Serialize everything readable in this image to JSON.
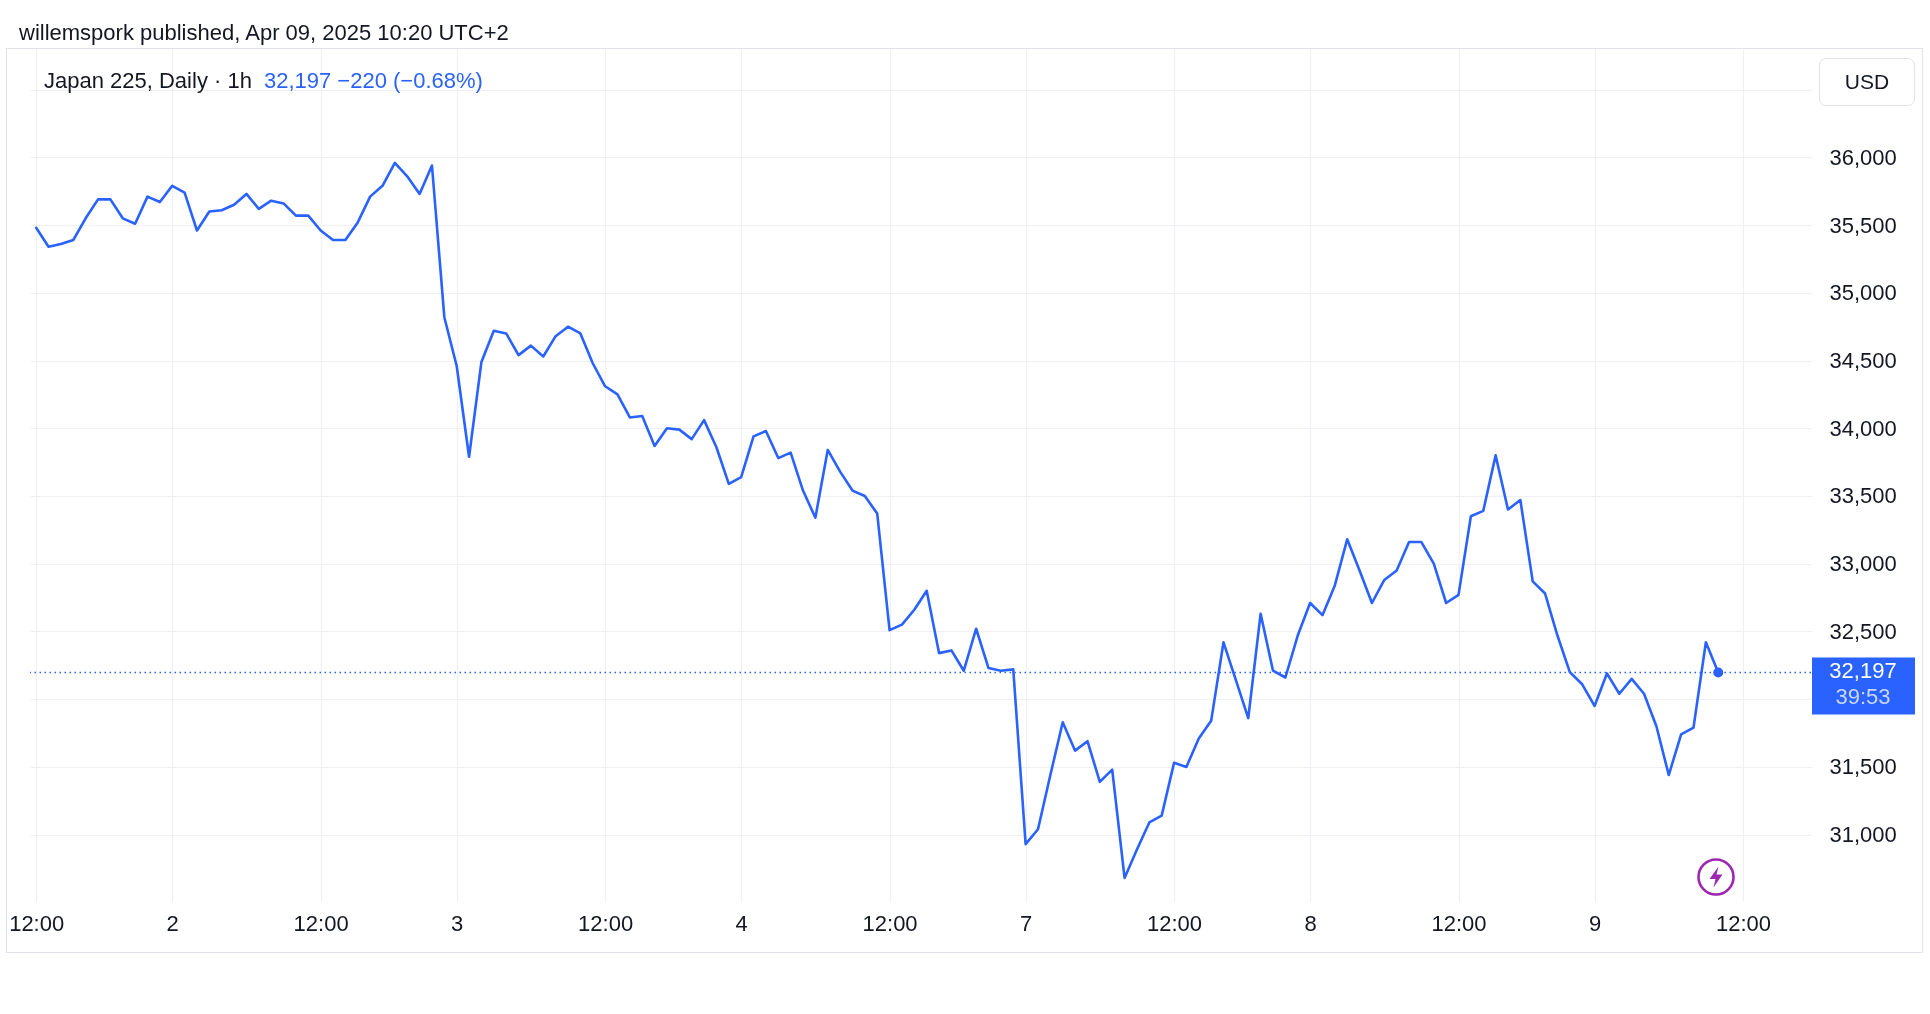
{
  "chart_data": {
    "type": "line",
    "title": "Japan 225, Daily · 1h",
    "subtitle": "32,197 −220 (−0.68%)",
    "ylabel": "USD",
    "annotations": [
      "willemspork published, Apr 09, 2025 10:20 UTC+2",
      "39:53"
    ],
    "categories": [
      "12:00",
      null,
      null,
      null,
      null,
      null,
      null,
      null,
      null,
      null,
      null,
      "2",
      null,
      null,
      null,
      null,
      null,
      null,
      null,
      null,
      null,
      null,
      null,
      "12:00",
      null,
      null,
      null,
      null,
      null,
      null,
      null,
      null,
      null,
      null,
      "3",
      null,
      null,
      null,
      null,
      null,
      null,
      null,
      null,
      null,
      null,
      null,
      "12:00",
      null,
      null,
      null,
      null,
      null,
      null,
      null,
      null,
      null,
      null,
      "4",
      null,
      null,
      null,
      null,
      null,
      null,
      null,
      null,
      null,
      null,
      null,
      "12:00",
      null,
      null,
      null,
      null,
      null,
      null,
      null,
      null,
      null,
      null,
      "7",
      null,
      null,
      null,
      null,
      null,
      null,
      null,
      null,
      null,
      null,
      null,
      "12:00",
      null,
      null,
      null,
      null,
      null,
      null,
      null,
      null,
      null,
      null,
      "8",
      null,
      null,
      null,
      null,
      null,
      null,
      null,
      null,
      null,
      null,
      null,
      "12:00",
      null,
      null,
      null,
      null,
      null,
      null,
      null,
      null,
      null,
      null,
      "9",
      null,
      null,
      null,
      null,
      null,
      null,
      null,
      null,
      null,
      null,
      null,
      "12:00",
      null,
      null,
      null,
      null,
      null
    ],
    "series": [
      {
        "color": "#2962ff",
        "values": [
          35480,
          35340,
          35360,
          35390,
          35550,
          35690,
          35690,
          35550,
          35510,
          35710,
          35670,
          35790,
          35740,
          35460,
          35600,
          35610,
          35650,
          35730,
          35620,
          35680,
          35660,
          35570,
          35570,
          35460,
          35390,
          35390,
          35520,
          35710,
          35790,
          35960,
          35860,
          35730,
          35940,
          34820,
          34460,
          33790,
          34490,
          34720,
          34700,
          34540,
          34610,
          34530,
          34680,
          34750,
          34700,
          34480,
          34310,
          34250,
          34080,
          34090,
          33870,
          34000,
          33990,
          33920,
          34060,
          33860,
          33590,
          33640,
          33940,
          33980,
          33780,
          33820,
          33540,
          33340,
          33840,
          33680,
          33540,
          33500,
          33370,
          32510,
          32550,
          32660,
          32800,
          32340,
          32360,
          32210,
          32520,
          32230,
          32210,
          32220,
          30930,
          31040,
          31440,
          31830,
          31620,
          31690,
          31390,
          31480,
          30680,
          30890,
          31090,
          31140,
          31530,
          31500,
          31710,
          31840,
          32420,
          32140,
          31860,
          32630,
          32210,
          32160,
          32470,
          32710,
          32620,
          32840,
          33180,
          32950,
          32710,
          32880,
          32950,
          33160,
          33160,
          33000,
          32710,
          32770,
          33350,
          33390,
          33800,
          33400,
          33470,
          32870,
          32780,
          32470,
          32200,
          32110,
          31950,
          32190,
          32040,
          32150,
          32040,
          31800,
          31440,
          31740,
          31790,
          32420,
          32197,
          null,
          null,
          null,
          null,
          null,
          null,
          null
        ]
      },
      {
        "type": "scatter",
        "color": "#2962ff",
        "marker": "circle",
        "values": [
          null,
          null,
          null,
          null,
          null,
          null,
          null,
          null,
          null,
          null,
          null,
          null,
          null,
          null,
          null,
          null,
          null,
          null,
          null,
          null,
          null,
          null,
          null,
          null,
          null,
          null,
          null,
          null,
          null,
          null,
          null,
          null,
          null,
          null,
          null,
          null,
          null,
          null,
          null,
          null,
          null,
          null,
          null,
          null,
          null,
          null,
          null,
          null,
          null,
          null,
          null,
          null,
          null,
          null,
          null,
          null,
          null,
          null,
          null,
          null,
          null,
          null,
          null,
          null,
          null,
          null,
          null,
          null,
          null,
          null,
          null,
          null,
          null,
          null,
          null,
          null,
          null,
          null,
          null,
          null,
          null,
          null,
          null,
          null,
          null,
          null,
          null,
          null,
          null,
          null,
          null,
          null,
          null,
          null,
          null,
          null,
          null,
          null,
          null,
          null,
          null,
          null,
          null,
          null,
          null,
          null,
          null,
          null,
          null,
          null,
          null,
          null,
          null,
          null,
          null,
          null,
          null,
          null,
          null,
          null,
          null,
          null,
          null,
          null,
          null,
          null,
          null,
          null,
          null,
          null,
          null,
          null,
          null,
          null,
          null,
          null,
          32197,
          null,
          null,
          null,
          null,
          null,
          null,
          null
        ]
      }
    ],
    "ylim": [
      30510,
      36800
    ],
    "yticks": [
      {
        "value": 31000,
        "label": "31,000"
      },
      {
        "value": 31500,
        "label": "31,500"
      },
      {
        "value": 32000,
        "label": null
      },
      {
        "value": 32500,
        "label": "32,500"
      },
      {
        "value": 33000,
        "label": "33,000"
      },
      {
        "value": 33500,
        "label": "33,500"
      },
      {
        "value": 34000,
        "label": "34,000"
      },
      {
        "value": 34500,
        "label": "34,500"
      },
      {
        "value": 35000,
        "label": "35,000"
      },
      {
        "value": 35500,
        "label": "35,500"
      },
      {
        "value": 36000,
        "label": "36,000"
      },
      {
        "value": 36500,
        "label": null
      }
    ],
    "ref_lines": [
      {
        "axis": "y",
        "value": 32197,
        "label": "32,197",
        "color": "#2962ff",
        "line_style": "dotted"
      }
    ],
    "grid": true
  }
}
